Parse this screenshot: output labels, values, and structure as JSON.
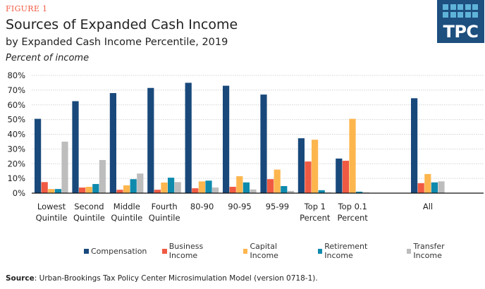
{
  "header": {
    "figure_label": "FIGURE 1",
    "title": "Sources of Expanded Cash Income",
    "subtitle": "by Expanded Cash Income Percentile, 2019",
    "unit_label": "Percent of income"
  },
  "logo": {
    "text": "TPC",
    "color": "#1d4f7f"
  },
  "chart_data": {
    "type": "bar",
    "title": "Sources of Expanded Cash Income",
    "ylabel": "Percent of income",
    "ylim": [
      0,
      80
    ],
    "yticks": [
      "0%",
      "10%",
      "20%",
      "30%",
      "40%",
      "50%",
      "60%",
      "70%",
      "80%"
    ],
    "grid": true,
    "legend_position": "bottom",
    "categories": [
      [
        "Lowest",
        "Quintile"
      ],
      [
        "Second",
        "Quintile"
      ],
      [
        "Middle",
        "Quintile"
      ],
      [
        "Fourth",
        "Quintile"
      ],
      [
        "80-90"
      ],
      [
        "90-95"
      ],
      [
        "95-99"
      ],
      [
        "Top 1",
        "Percent"
      ],
      [
        "Top 0.1",
        "Percent"
      ],
      [
        "All"
      ]
    ],
    "series": [
      {
        "name": "Compensation",
        "color": "#19497b",
        "values": [
          50.5,
          62.5,
          68,
          71.5,
          75,
          73,
          67,
          37.3,
          23.5,
          64.5
        ]
      },
      {
        "name": "Business Income",
        "color": "#f05a42",
        "values": [
          7.5,
          3.8,
          2.3,
          2.3,
          3.3,
          4.3,
          9.5,
          21.5,
          22,
          6.8
        ]
      },
      {
        "name": "Capital Income",
        "color": "#fdb64e",
        "values": [
          2.8,
          4.3,
          5.3,
          7.2,
          8,
          11.5,
          16,
          36.3,
          50.5,
          13
        ]
      },
      {
        "name": "Retirement Income",
        "color": "#0e8aad",
        "values": [
          2.8,
          6.2,
          9.5,
          10.5,
          8.5,
          7.3,
          4.8,
          2,
          1,
          7.3
        ]
      },
      {
        "name": "Transfer Income",
        "color": "#bdbdbd",
        "values": [
          35,
          22.5,
          13.3,
          7.5,
          3.8,
          2.5,
          1.5,
          0.5,
          0.5,
          8
        ]
      }
    ]
  },
  "footnote": {
    "label": "Source",
    "text": ": Urban-Brookings Tax Policy Center Microsimulation Model (version 0718-1)."
  }
}
